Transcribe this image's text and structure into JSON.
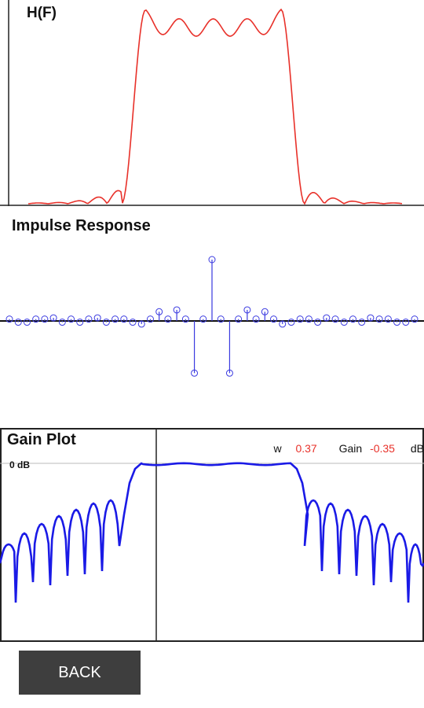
{
  "hf_panel": {
    "title": "H(F)"
  },
  "impulse_panel": {
    "title": "Impulse Response"
  },
  "gain_panel": {
    "title": "Gain Plot",
    "ref_label": "0 dB",
    "readout": {
      "w_label": "w",
      "w_value": "0.37",
      "gain_label": "Gain",
      "gain_value": "-0.35",
      "unit": "dB"
    }
  },
  "footer": {
    "back_label": "BACK"
  },
  "colors": {
    "hf_curve": "#e8312a",
    "impulse": "#3a3ae0",
    "gain_curve": "#1a1ae6",
    "button": "#3e3e3e"
  },
  "chart_data": [
    {
      "type": "line",
      "title": "H(F)",
      "description": "bandpass filter magnitude response with passband ripple",
      "series": [
        {
          "name": "",
          "color": "#e8312a"
        }
      ]
    },
    {
      "type": "scatter",
      "title": "Impulse Response",
      "description": "stem plot of filter coefficients",
      "values": [
        0.03,
        -0.02,
        -0.02,
        0.03,
        0.03,
        0.05,
        -0.02,
        0.03,
        -0.02,
        0.03,
        0.05,
        -0.02,
        0.03,
        0.03,
        -0.02,
        -0.05,
        0.03,
        0.15,
        0.03,
        0.18,
        0.03,
        -0.85,
        0.03,
        1.0,
        0.03,
        -0.85,
        0.03,
        0.18,
        0.03,
        0.15,
        0.03,
        -0.05,
        -0.02,
        0.03,
        0.03,
        -0.02,
        0.05,
        0.03,
        -0.02,
        0.03,
        -0.02,
        0.05,
        0.03,
        0.03,
        -0.02,
        -0.02,
        0.03
      ]
    },
    {
      "type": "line",
      "title": "Gain Plot",
      "ylabel": "dB",
      "description": "log-magnitude gain response; cursor at w 0.37",
      "cursor_w": 0.37,
      "cursor_gain_db": -0.35,
      "series": [
        {
          "name": "",
          "color": "#1a1ae6"
        }
      ]
    }
  ]
}
